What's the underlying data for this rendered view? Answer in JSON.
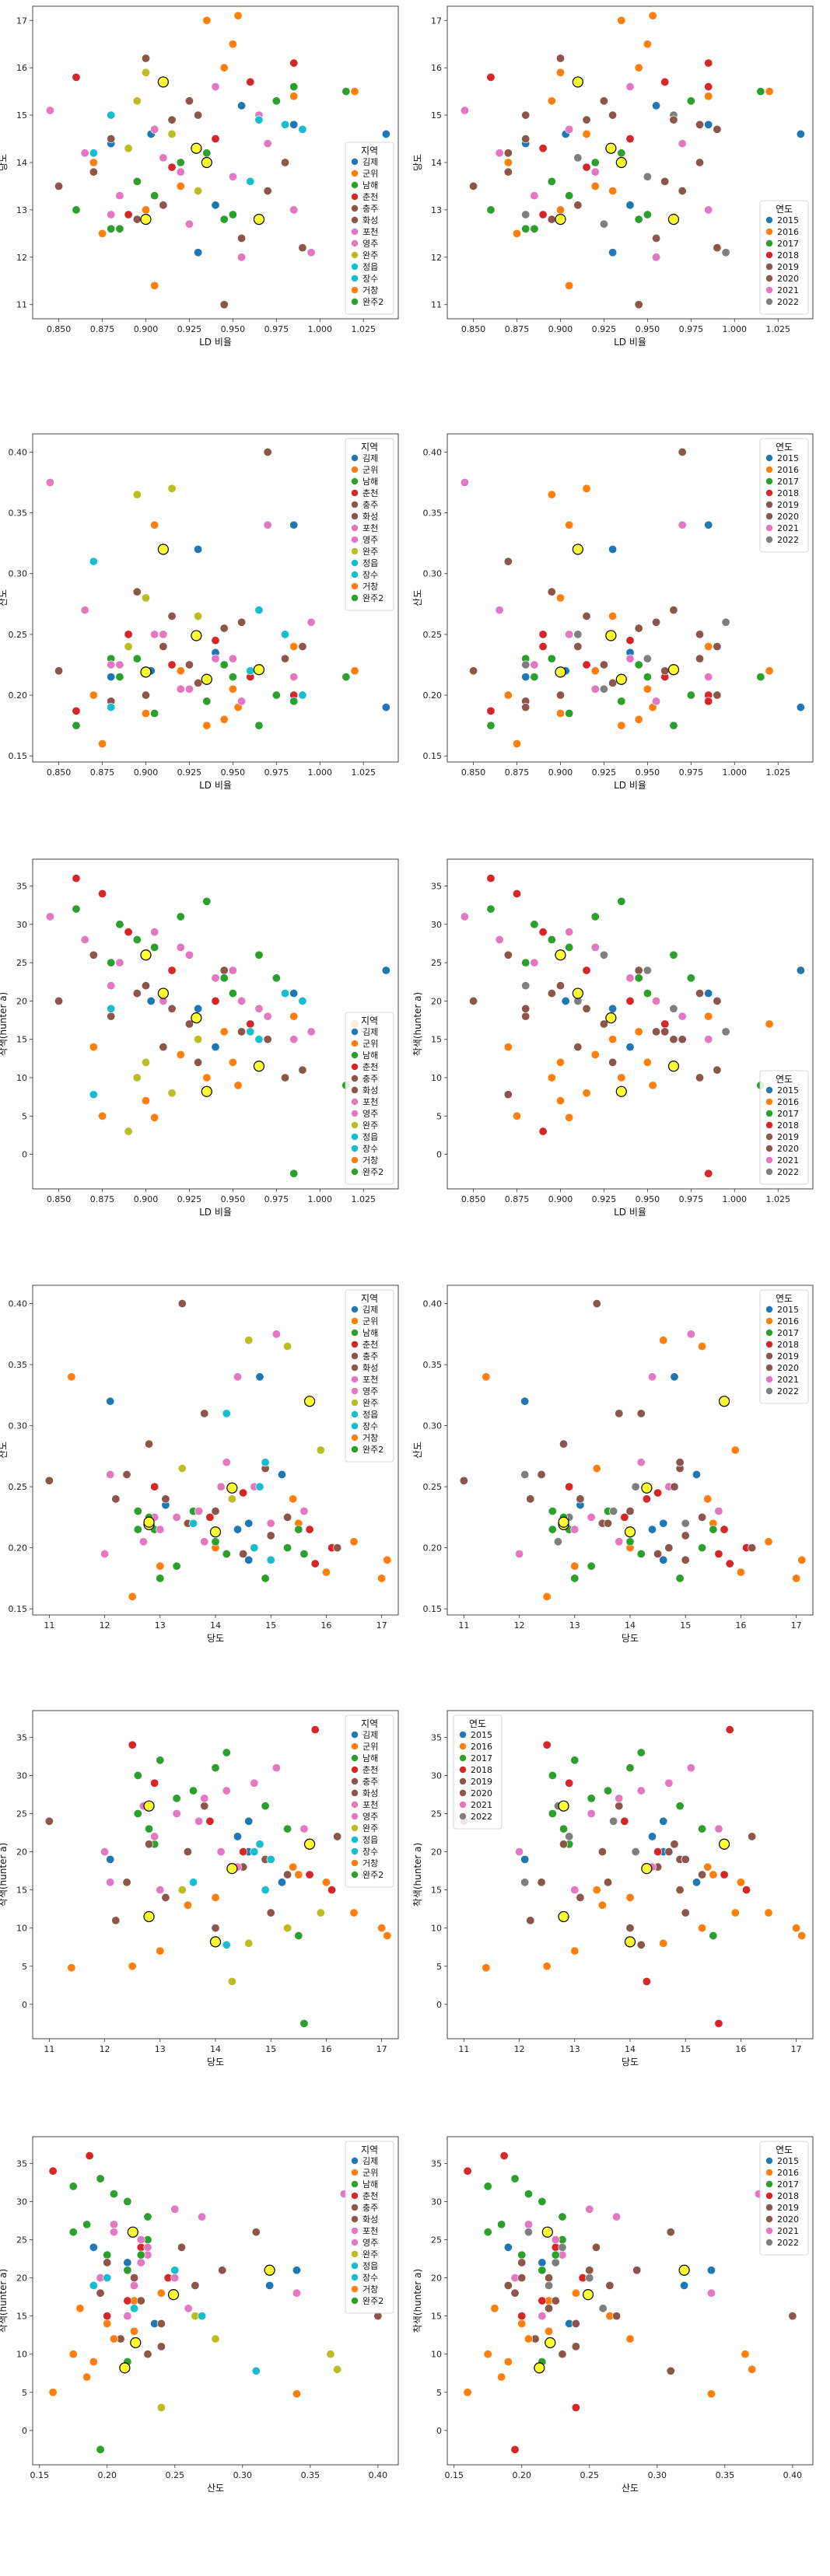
{
  "figure": {
    "background": "#ffffff"
  },
  "palettes": {
    "region": [
      "#1f77b4",
      "#ff7f0e",
      "#2ca02c",
      "#d62728",
      "#8c564b",
      "#8c564b",
      "#e377c2",
      "#e377c2",
      "#bcbd22",
      "#17becf",
      "#17becf",
      "#ff7f0e",
      "#2ca02c"
    ],
    "year": [
      "#1f77b4",
      "#ff7f0e",
      "#2ca02c",
      "#d62728",
      "#8c564b",
      "#8c564b",
      "#e377c2",
      "#7f7f7f"
    ]
  },
  "highlight": {
    "color": "#ffff33",
    "edge": "#000000"
  },
  "legends": {
    "region": {
      "title": "지역",
      "entries": [
        "김제",
        "군위",
        "남해",
        "춘천",
        "충주",
        "화성",
        "포천",
        "영주",
        "완주",
        "정읍",
        "장수",
        "거창",
        "완주2"
      ]
    },
    "year": {
      "title": "연도",
      "entries": [
        "2015",
        "2016",
        "2017",
        "2018",
        "2019",
        "2020",
        "2021",
        "2022"
      ]
    }
  },
  "chart_data": [
    {
      "type": "scatter",
      "hue": "region",
      "legend": "bottom-right",
      "x_var": "ld",
      "y_var": "brix",
      "xlabel": "LD 비율",
      "ylabel": "당도",
      "xlim": [
        0.835,
        1.045
      ],
      "ylim": [
        10.7,
        17.3
      ],
      "xticks": [
        "0.850",
        "0.875",
        "0.900",
        "0.925",
        "0.950",
        "0.975",
        "1.000",
        "1.025"
      ],
      "yticks": [
        "11",
        "12",
        "13",
        "14",
        "15",
        "16",
        "17"
      ]
    },
    {
      "type": "scatter",
      "hue": "year",
      "legend": "bottom-right",
      "x_var": "ld",
      "y_var": "brix",
      "xlabel": "LD 비율",
      "ylabel": "당도",
      "xlim": [
        0.835,
        1.045
      ],
      "ylim": [
        10.7,
        17.3
      ],
      "xticks": [
        "0.850",
        "0.875",
        "0.900",
        "0.925",
        "0.950",
        "0.975",
        "1.000",
        "1.025"
      ],
      "yticks": [
        "11",
        "12",
        "13",
        "14",
        "15",
        "16",
        "17"
      ]
    },
    {
      "type": "scatter",
      "hue": "region",
      "legend": "top-right",
      "x_var": "ld",
      "y_var": "acid",
      "xlabel": "LD 비율",
      "ylabel": "산도",
      "xlim": [
        0.835,
        1.045
      ],
      "ylim": [
        0.145,
        0.415
      ],
      "xticks": [
        "0.850",
        "0.875",
        "0.900",
        "0.925",
        "0.950",
        "0.975",
        "1.000",
        "1.025"
      ],
      "yticks": [
        "0.15",
        "0.20",
        "0.25",
        "0.30",
        "0.35",
        "0.40"
      ]
    },
    {
      "type": "scatter",
      "hue": "year",
      "legend": "top-right",
      "x_var": "ld",
      "y_var": "acid",
      "xlabel": "LD 비율",
      "ylabel": "산도",
      "xlim": [
        0.835,
        1.045
      ],
      "ylim": [
        0.145,
        0.415
      ],
      "xticks": [
        "0.850",
        "0.875",
        "0.900",
        "0.925",
        "0.950",
        "0.975",
        "1.000",
        "1.025"
      ],
      "yticks": [
        "0.15",
        "0.20",
        "0.25",
        "0.30",
        "0.35",
        "0.40"
      ]
    },
    {
      "type": "scatter",
      "hue": "region",
      "legend": "bottom-right",
      "x_var": "ld",
      "y_var": "hunter_a",
      "xlabel": "LD 비율",
      "ylabel": "착색(hunter a)",
      "xlim": [
        0.835,
        1.045
      ],
      "ylim": [
        -4.5,
        38.5
      ],
      "xticks": [
        "0.850",
        "0.875",
        "0.900",
        "0.925",
        "0.950",
        "0.975",
        "1.000",
        "1.025"
      ],
      "yticks": [
        "0",
        "5",
        "10",
        "15",
        "20",
        "25",
        "30",
        "35"
      ]
    },
    {
      "type": "scatter",
      "hue": "year",
      "legend": "bottom-right",
      "x_var": "ld",
      "y_var": "hunter_a",
      "xlabel": "LD 비율",
      "ylabel": "착색(hunter a)",
      "xlim": [
        0.835,
        1.045
      ],
      "ylim": [
        -4.5,
        38.5
      ],
      "xticks": [
        "0.850",
        "0.875",
        "0.900",
        "0.925",
        "0.950",
        "0.975",
        "1.000",
        "1.025"
      ],
      "yticks": [
        "0",
        "5",
        "10",
        "15",
        "20",
        "25",
        "30",
        "35"
      ]
    },
    {
      "type": "scatter",
      "hue": "region",
      "legend": "top-right",
      "x_var": "brix",
      "y_var": "acid",
      "xlabel": "당도",
      "ylabel": "산도",
      "xlim": [
        10.7,
        17.3
      ],
      "ylim": [
        0.145,
        0.415
      ],
      "xticks": [
        "11",
        "12",
        "13",
        "14",
        "15",
        "16",
        "17"
      ],
      "yticks": [
        "0.15",
        "0.20",
        "0.25",
        "0.30",
        "0.35",
        "0.40"
      ]
    },
    {
      "type": "scatter",
      "hue": "year",
      "legend": "top-right",
      "x_var": "brix",
      "y_var": "acid",
      "xlabel": "당도",
      "ylabel": "산도",
      "xlim": [
        10.7,
        17.3
      ],
      "ylim": [
        0.145,
        0.415
      ],
      "xticks": [
        "11",
        "12",
        "13",
        "14",
        "15",
        "16",
        "17"
      ],
      "yticks": [
        "0.15",
        "0.20",
        "0.25",
        "0.30",
        "0.35",
        "0.40"
      ]
    },
    {
      "type": "scatter",
      "hue": "region",
      "legend": "top-right",
      "x_var": "brix",
      "y_var": "hunter_a",
      "xlabel": "당도",
      "ylabel": "착색(hunter a)",
      "xlim": [
        10.7,
        17.3
      ],
      "ylim": [
        -4.5,
        38.5
      ],
      "xticks": [
        "11",
        "12",
        "13",
        "14",
        "15",
        "16",
        "17"
      ],
      "yticks": [
        "0",
        "5",
        "10",
        "15",
        "20",
        "25",
        "30",
        "35"
      ]
    },
    {
      "type": "scatter",
      "hue": "year",
      "legend": "top-left",
      "x_var": "brix",
      "y_var": "hunter_a",
      "xlabel": "당도",
      "ylabel": "착색(hunter a)",
      "xlim": [
        10.7,
        17.3
      ],
      "ylim": [
        -4.5,
        38.5
      ],
      "xticks": [
        "11",
        "12",
        "13",
        "14",
        "15",
        "16",
        "17"
      ],
      "yticks": [
        "0",
        "5",
        "10",
        "15",
        "20",
        "25",
        "30",
        "35"
      ]
    },
    {
      "type": "scatter",
      "hue": "region",
      "legend": "top-right",
      "x_var": "acid",
      "y_var": "hunter_a",
      "xlabel": "산도",
      "ylabel": "착색(hunter a)",
      "xlim": [
        0.145,
        0.415
      ],
      "ylim": [
        -4.5,
        38.5
      ],
      "xticks": [
        "0.15",
        "0.20",
        "0.25",
        "0.30",
        "0.35",
        "0.40"
      ],
      "yticks": [
        "0",
        "5",
        "10",
        "15",
        "20",
        "25",
        "30",
        "35"
      ]
    },
    {
      "type": "scatter",
      "hue": "year",
      "legend": "top-right",
      "x_var": "acid",
      "y_var": "hunter_a",
      "xlabel": "산도",
      "ylabel": "착색(hunter a)",
      "xlim": [
        0.145,
        0.415
      ],
      "ylim": [
        -4.5,
        38.5
      ],
      "xticks": [
        "0.15",
        "0.20",
        "0.25",
        "0.30",
        "0.35",
        "0.40"
      ],
      "yticks": [
        "0",
        "5",
        "10",
        "15",
        "20",
        "25",
        "30",
        "35"
      ]
    }
  ],
  "samples": [
    {
      "ld": 0.88,
      "brix": 14.4,
      "acid": 0.215,
      "hunter_a": 22,
      "region": 0,
      "year": 0
    },
    {
      "ld": 0.94,
      "brix": 13.1,
      "acid": 0.235,
      "hunter_a": 14,
      "region": 0,
      "year": 0
    },
    {
      "ld": 0.955,
      "brix": 15.2,
      "acid": 0.26,
      "hunter_a": 16,
      "region": 0,
      "year": 0
    },
    {
      "ld": 0.93,
      "brix": 12.1,
      "acid": 0.32,
      "hunter_a": 19,
      "region": 0,
      "year": 0
    },
    {
      "ld": 0.985,
      "brix": 14.8,
      "acid": 0.34,
      "hunter_a": 21,
      "region": 0,
      "year": 0
    },
    {
      "ld": 1.038,
      "brix": 14.6,
      "acid": 0.19,
      "hunter_a": 24,
      "region": 0,
      "year": 0
    },
    {
      "ld": 0.903,
      "brix": 14.6,
      "acid": 0.22,
      "hunter_a": 20,
      "region": 0,
      "year": 0
    },
    {
      "ld": 0.953,
      "brix": 17.1,
      "acid": 0.19,
      "hunter_a": 9,
      "region": 1,
      "year": 1
    },
    {
      "ld": 0.905,
      "brix": 11.4,
      "acid": 0.34,
      "hunter_a": 4.8,
      "region": 1,
      "year": 1
    },
    {
      "ld": 0.92,
      "brix": 13.5,
      "acid": 0.22,
      "hunter_a": 13,
      "region": 1,
      "year": 1
    },
    {
      "ld": 0.945,
      "brix": 16.0,
      "acid": 0.18,
      "hunter_a": 16,
      "region": 1,
      "year": 1
    },
    {
      "ld": 0.985,
      "brix": 15.4,
      "acid": 0.24,
      "hunter_a": 18,
      "region": 1,
      "year": 1
    },
    {
      "ld": 0.87,
      "brix": 14.0,
      "acid": 0.2,
      "hunter_a": 14,
      "region": 1,
      "year": 1
    },
    {
      "ld": 1.02,
      "brix": 15.5,
      "acid": 0.22,
      "hunter_a": 17,
      "region": 1,
      "year": 1
    },
    {
      "ld": 0.88,
      "brix": 12.6,
      "acid": 0.23,
      "hunter_a": 25,
      "region": 2,
      "year": 2
    },
    {
      "ld": 0.905,
      "brix": 13.3,
      "acid": 0.185,
      "hunter_a": 27,
      "region": 2,
      "year": 2
    },
    {
      "ld": 0.92,
      "brix": 14.0,
      "acid": 0.205,
      "hunter_a": 31,
      "region": 2,
      "year": 2
    },
    {
      "ld": 0.935,
      "brix": 14.2,
      "acid": 0.195,
      "hunter_a": 33,
      "region": 2,
      "year": 2
    },
    {
      "ld": 0.95,
      "brix": 12.9,
      "acid": 0.215,
      "hunter_a": 21,
      "region": 2,
      "year": 2
    },
    {
      "ld": 0.965,
      "brix": 14.9,
      "acid": 0.175,
      "hunter_a": 26,
      "region": 2,
      "year": 2
    },
    {
      "ld": 0.975,
      "brix": 15.3,
      "acid": 0.2,
      "hunter_a": 23,
      "region": 2,
      "year": 2
    },
    {
      "ld": 0.895,
      "brix": 13.6,
      "acid": 0.23,
      "hunter_a": 28,
      "region": 2,
      "year": 2
    },
    {
      "ld": 0.86,
      "brix": 15.8,
      "acid": 0.187,
      "hunter_a": 36,
      "region": 3,
      "year": 3
    },
    {
      "ld": 0.875,
      "brix": 12.5,
      "acid": 0.16,
      "hunter_a": 34,
      "region": 3,
      "year": 3
    },
    {
      "ld": 0.915,
      "brix": 13.9,
      "acid": 0.225,
      "hunter_a": 24,
      "region": 3,
      "year": 3
    },
    {
      "ld": 0.94,
      "brix": 14.5,
      "acid": 0.245,
      "hunter_a": 20,
      "region": 3,
      "year": 3
    },
    {
      "ld": 0.96,
      "brix": 15.7,
      "acid": 0.215,
      "hunter_a": 17,
      "region": 3,
      "year": 3
    },
    {
      "ld": 0.985,
      "brix": 16.1,
      "acid": 0.2,
      "hunter_a": 15,
      "region": 3,
      "year": 3
    },
    {
      "ld": 0.89,
      "brix": 12.9,
      "acid": 0.25,
      "hunter_a": 29,
      "region": 3,
      "year": 3
    },
    {
      "ld": 0.85,
      "brix": 13.5,
      "acid": 0.22,
      "hunter_a": 20,
      "region": 4,
      "year": 4
    },
    {
      "ld": 0.88,
      "brix": 14.5,
      "acid": 0.195,
      "hunter_a": 18,
      "region": 4,
      "year": 4
    },
    {
      "ld": 0.91,
      "brix": 13.1,
      "acid": 0.24,
      "hunter_a": 14,
      "region": 4,
      "year": 4
    },
    {
      "ld": 0.93,
      "brix": 15.0,
      "acid": 0.21,
      "hunter_a": 12,
      "region": 4,
      "year": 4
    },
    {
      "ld": 0.955,
      "brix": 12.4,
      "acid": 0.26,
      "hunter_a": 16,
      "region": 4,
      "year": 4
    },
    {
      "ld": 0.98,
      "brix": 14.0,
      "acid": 0.23,
      "hunter_a": 10,
      "region": 4,
      "year": 4
    },
    {
      "ld": 0.9,
      "brix": 16.2,
      "acid": 0.2,
      "hunter_a": 22,
      "region": 4,
      "year": 4
    },
    {
      "ld": 0.87,
      "brix": 13.8,
      "acid": 0.31,
      "hunter_a": 26,
      "region": 5,
      "year": 5
    },
    {
      "ld": 0.895,
      "brix": 12.8,
      "acid": 0.285,
      "hunter_a": 21,
      "region": 5,
      "year": 5
    },
    {
      "ld": 0.915,
      "brix": 14.9,
      "acid": 0.265,
      "hunter_a": 19,
      "region": 5,
      "year": 5
    },
    {
      "ld": 0.945,
      "brix": 11.0,
      "acid": 0.255,
      "hunter_a": 24,
      "region": 5,
      "year": 5
    },
    {
      "ld": 0.97,
      "brix": 13.4,
      "acid": 0.4,
      "hunter_a": 15,
      "region": 5,
      "year": 5
    },
    {
      "ld": 0.99,
      "brix": 12.2,
      "acid": 0.24,
      "hunter_a": 11,
      "region": 5,
      "year": 5
    },
    {
      "ld": 0.925,
      "brix": 15.3,
      "acid": 0.225,
      "hunter_a": 17,
      "region": 5,
      "year": 5
    },
    {
      "ld": 0.845,
      "brix": 15.1,
      "acid": 0.375,
      "hunter_a": 31,
      "region": 6,
      "year": 6
    },
    {
      "ld": 0.865,
      "brix": 14.2,
      "acid": 0.27,
      "hunter_a": 28,
      "region": 6,
      "year": 6
    },
    {
      "ld": 0.885,
      "brix": 13.3,
      "acid": 0.225,
      "hunter_a": 25,
      "region": 6,
      "year": 6
    },
    {
      "ld": 0.905,
      "brix": 14.7,
      "acid": 0.25,
      "hunter_a": 29,
      "region": 6,
      "year": 6
    },
    {
      "ld": 0.92,
      "brix": 13.8,
      "acid": 0.205,
      "hunter_a": 27,
      "region": 6,
      "year": 6
    },
    {
      "ld": 0.94,
      "brix": 15.6,
      "acid": 0.23,
      "hunter_a": 23,
      "region": 6,
      "year": 6
    },
    {
      "ld": 0.955,
      "brix": 12.0,
      "acid": 0.195,
      "hunter_a": 20,
      "region": 6,
      "year": 6
    },
    {
      "ld": 0.97,
      "brix": 14.4,
      "acid": 0.34,
      "hunter_a": 18,
      "region": 6,
      "year": 6
    },
    {
      "ld": 0.985,
      "brix": 13.0,
      "acid": 0.215,
      "hunter_a": 15,
      "region": 6,
      "year": 6
    },
    {
      "ld": 0.88,
      "brix": 12.9,
      "acid": 0.225,
      "hunter_a": 22,
      "region": 7,
      "year": 7
    },
    {
      "ld": 0.91,
      "brix": 14.1,
      "acid": 0.25,
      "hunter_a": 20,
      "region": 7,
      "year": 7
    },
    {
      "ld": 0.925,
      "brix": 12.7,
      "acid": 0.205,
      "hunter_a": 26,
      "region": 7,
      "year": 7
    },
    {
      "ld": 0.95,
      "brix": 13.7,
      "acid": 0.23,
      "hunter_a": 24,
      "region": 7,
      "year": 7
    },
    {
      "ld": 0.965,
      "brix": 15.0,
      "acid": 0.22,
      "hunter_a": 19,
      "region": 7,
      "year": 7
    },
    {
      "ld": 0.995,
      "brix": 12.1,
      "acid": 0.26,
      "hunter_a": 16,
      "region": 7,
      "year": 7
    },
    {
      "ld": 0.9,
      "brix": 15.9,
      "acid": 0.28,
      "hunter_a": 12,
      "region": 8,
      "year": 1
    },
    {
      "ld": 0.915,
      "brix": 14.6,
      "acid": 0.37,
      "hunter_a": 8,
      "region": 8,
      "year": 1
    },
    {
      "ld": 0.895,
      "brix": 15.3,
      "acid": 0.365,
      "hunter_a": 10,
      "region": 8,
      "year": 1
    },
    {
      "ld": 0.93,
      "brix": 13.4,
      "acid": 0.265,
      "hunter_a": 15,
      "region": 8,
      "year": 1
    },
    {
      "ld": 0.89,
      "brix": 14.3,
      "acid": 0.24,
      "hunter_a": 3,
      "region": 8,
      "year": 3
    },
    {
      "ld": 0.87,
      "brix": 14.2,
      "acid": 0.31,
      "hunter_a": 7.8,
      "region": 9,
      "year": 4
    },
    {
      "ld": 0.965,
      "brix": 14.9,
      "acid": 0.27,
      "hunter_a": 15,
      "region": 9,
      "year": 4
    },
    {
      "ld": 0.98,
      "brix": 14.8,
      "acid": 0.25,
      "hunter_a": 21,
      "region": 9,
      "year": 4
    },
    {
      "ld": 0.99,
      "brix": 14.7,
      "acid": 0.2,
      "hunter_a": 20,
      "region": 9,
      "year": 4
    },
    {
      "ld": 0.96,
      "brix": 13.6,
      "acid": 0.22,
      "hunter_a": 16,
      "region": 10,
      "year": 5
    },
    {
      "ld": 0.88,
      "brix": 15.0,
      "acid": 0.19,
      "hunter_a": 19,
      "region": 10,
      "year": 5
    },
    {
      "ld": 0.95,
      "brix": 16.5,
      "acid": 0.205,
      "hunter_a": 12,
      "region": 11,
      "year": 1
    },
    {
      "ld": 0.935,
      "brix": 17.0,
      "acid": 0.175,
      "hunter_a": 10,
      "region": 11,
      "year": 1
    },
    {
      "ld": 0.875,
      "brix": 12.5,
      "acid": 0.16,
      "hunter_a": 5,
      "region": 11,
      "year": 1
    },
    {
      "ld": 0.9,
      "brix": 13.0,
      "acid": 0.185,
      "hunter_a": 7,
      "region": 11,
      "year": 1
    },
    {
      "ld": 0.885,
      "brix": 12.6,
      "acid": 0.215,
      "hunter_a": 30,
      "region": 12,
      "year": 2
    },
    {
      "ld": 0.945,
      "brix": 12.8,
      "acid": 0.225,
      "hunter_a": 23,
      "region": 12,
      "year": 2
    },
    {
      "ld": 1.015,
      "brix": 15.5,
      "acid": 0.215,
      "hunter_a": 9,
      "region": 12,
      "year": 2
    },
    {
      "ld": 0.985,
      "brix": 15.6,
      "acid": 0.195,
      "hunter_a": -2.5,
      "region": 12,
      "year": 3
    },
    {
      "ld": 0.86,
      "brix": 13.0,
      "acid": 0.175,
      "hunter_a": 32,
      "region": 12,
      "year": 2
    }
  ],
  "highlights": [
    {
      "ld": 0.929,
      "brix": 14.3,
      "acid": 0.249,
      "hunter_a": 17.8
    },
    {
      "ld": 0.91,
      "brix": 15.7,
      "acid": 0.32,
      "hunter_a": 21.0
    },
    {
      "ld": 0.9,
      "brix": 12.8,
      "acid": 0.219,
      "hunter_a": 26.0
    },
    {
      "ld": 0.935,
      "brix": 14.0,
      "acid": 0.213,
      "hunter_a": 8.2
    },
    {
      "ld": 0.965,
      "brix": 12.8,
      "acid": 0.221,
      "hunter_a": 11.5
    }
  ]
}
